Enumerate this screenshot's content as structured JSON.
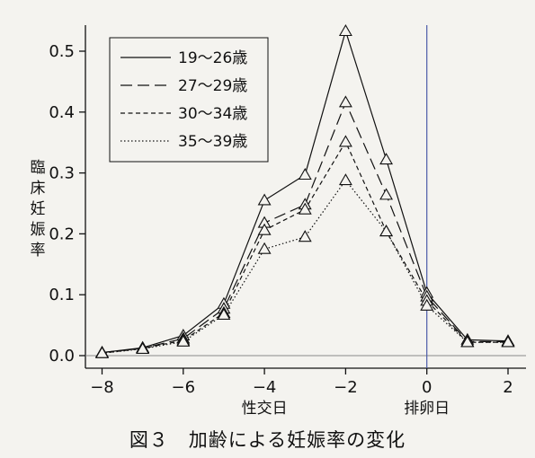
{
  "caption": "図３　加齢による妊娠率の変化",
  "chart_data": {
    "type": "line",
    "title": "",
    "xlabel": "性交日",
    "x_annotation": "排卵日",
    "ylabel": "臨床妊娠率",
    "xlim": [
      -8,
      2
    ],
    "ylim": [
      0,
      0.5
    ],
    "xticks": [
      -8,
      -6,
      -4,
      -2,
      0,
      2
    ],
    "yticks": [
      0.0,
      0.1,
      0.2,
      0.3,
      0.4,
      0.5
    ],
    "ytick_labels": [
      "0.0",
      "0.1",
      "0.2",
      "0.3",
      "0.4",
      "0.5"
    ],
    "xtick_labels": [
      "−8",
      "−6",
      "−4",
      "−2",
      "0",
      "2"
    ],
    "reference_line_x": 0,
    "legend_position": "top-left",
    "marker": "open-triangle",
    "x": [
      -8,
      -7,
      -6,
      -5,
      -4,
      -3,
      -2,
      -1,
      0,
      1,
      2
    ],
    "series": [
      {
        "name": "19〜26歳",
        "dash": "solid",
        "values": [
          0.005,
          0.013,
          0.033,
          0.085,
          0.255,
          0.297,
          0.533,
          0.322,
          0.103,
          0.026,
          0.024
        ]
      },
      {
        "name": "27〜29歳",
        "dash": "long-dash",
        "values": [
          0.005,
          0.012,
          0.028,
          0.077,
          0.218,
          0.248,
          0.416,
          0.264,
          0.097,
          0.023,
          0.023
        ]
      },
      {
        "name": "30〜34歳",
        "dash": "short-dash",
        "values": [
          0.004,
          0.012,
          0.025,
          0.07,
          0.206,
          0.24,
          0.351,
          0.204,
          0.09,
          0.022,
          0.022
        ]
      },
      {
        "name": "35〜39歳",
        "dash": "dotted",
        "values": [
          0.004,
          0.011,
          0.023,
          0.067,
          0.175,
          0.195,
          0.288,
          0.204,
          0.082,
          0.022,
          0.022
        ]
      }
    ]
  },
  "colors": {
    "line": "#111111",
    "refline": "#4a5aa8",
    "background": "#f4f3ef"
  }
}
